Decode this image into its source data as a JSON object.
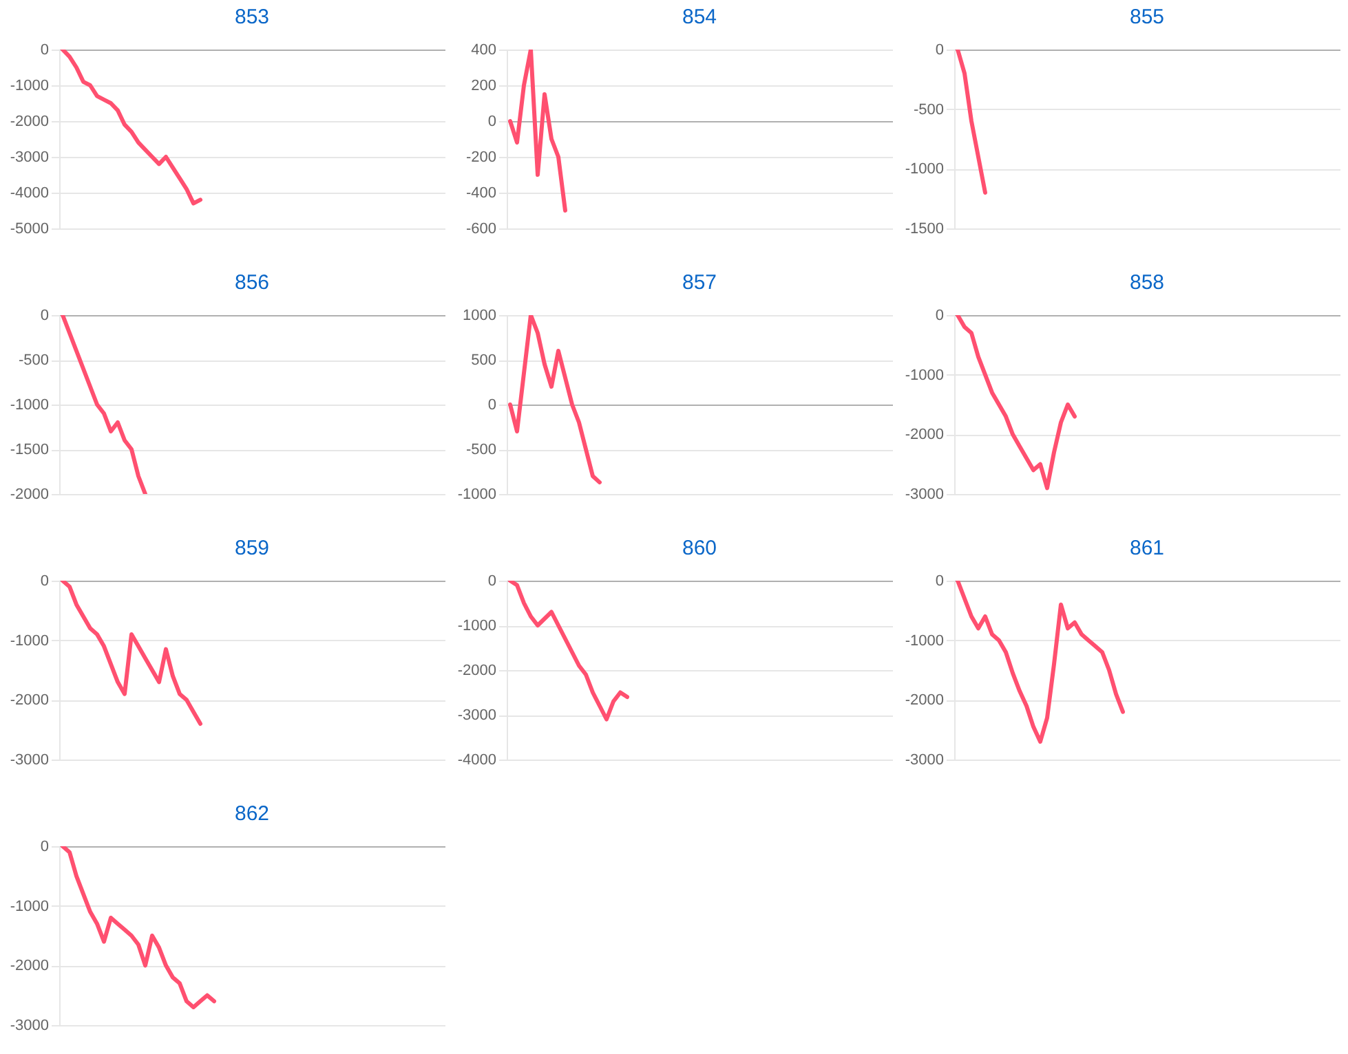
{
  "chart_data": [
    {
      "type": "line",
      "title": "853",
      "grid": "y",
      "ylim": [
        -5000,
        0
      ],
      "yticks": [
        -5000,
        -4000,
        -3000,
        -2000,
        -1000,
        0
      ],
      "categories": [
        null,
        null,
        null,
        null,
        null,
        null,
        null,
        null,
        null,
        null,
        null,
        null,
        null,
        null,
        null,
        null,
        null,
        null,
        null,
        null,
        null,
        null,
        null,
        null,
        null,
        null,
        null,
        null,
        null,
        null,
        null,
        null,
        null,
        null,
        null,
        null,
        null,
        null,
        null,
        null,
        null,
        null,
        null,
        null,
        null,
        null,
        null,
        null,
        null,
        null,
        null,
        null,
        null,
        null,
        null,
        null
      ],
      "series": [
        {
          "color": "#ff5070",
          "values": [
            0,
            -200,
            -500,
            -900,
            -1000,
            -1300,
            -1400,
            -1500,
            -1700,
            -2100,
            -2300,
            -2600,
            -2800,
            -3000,
            -3200,
            -3000,
            -3300,
            -3600,
            -3900,
            -4300,
            -4200,
            null,
            null,
            null,
            null,
            null,
            null,
            null,
            null,
            null,
            null,
            null,
            null,
            null,
            null,
            null,
            null,
            null,
            null,
            null,
            null,
            null,
            null,
            null,
            null,
            null,
            null,
            null,
            null,
            null,
            null,
            null,
            null,
            null,
            null,
            null
          ]
        }
      ]
    },
    {
      "type": "line",
      "title": "854",
      "grid": "y",
      "ylim": [
        -600,
        400
      ],
      "yticks": [
        -600,
        -400,
        -200,
        0,
        200,
        400
      ],
      "categories": [
        null,
        null,
        null,
        null,
        null,
        null,
        null,
        null,
        null,
        null,
        null,
        null,
        null,
        null,
        null,
        null,
        null,
        null,
        null,
        null,
        null,
        null,
        null,
        null,
        null,
        null,
        null,
        null,
        null,
        null,
        null,
        null,
        null,
        null,
        null,
        null,
        null,
        null,
        null,
        null,
        null,
        null,
        null,
        null,
        null,
        null,
        null,
        null,
        null,
        null,
        null,
        null,
        null,
        null,
        null,
        null
      ],
      "series": [
        {
          "color": "#ff5070",
          "values": [
            0,
            -120,
            200,
            400,
            -300,
            150,
            -100,
            -200,
            -500,
            null,
            null,
            null,
            null,
            null,
            null,
            null,
            null,
            null,
            null,
            null,
            null,
            null,
            null,
            null,
            null,
            null,
            null,
            null,
            null,
            null,
            null,
            null,
            null,
            null,
            null,
            null,
            null,
            null,
            null,
            null,
            null,
            null,
            null,
            null,
            null,
            null,
            null,
            null,
            null,
            null,
            null,
            null,
            null,
            null,
            null,
            null
          ]
        }
      ]
    },
    {
      "type": "line",
      "title": "855",
      "grid": "y",
      "ylim": [
        -1500,
        0
      ],
      "yticks": [
        -1500,
        -1000,
        -500,
        0
      ],
      "categories": [
        null,
        null,
        null,
        null,
        null,
        null,
        null,
        null,
        null,
        null,
        null,
        null,
        null,
        null,
        null,
        null,
        null,
        null,
        null,
        null,
        null,
        null,
        null,
        null,
        null,
        null,
        null,
        null,
        null,
        null,
        null,
        null,
        null,
        null,
        null,
        null,
        null,
        null,
        null,
        null,
        null,
        null,
        null,
        null,
        null,
        null,
        null,
        null,
        null,
        null,
        null,
        null,
        null,
        null,
        null,
        null
      ],
      "series": [
        {
          "color": "#ff5070",
          "values": [
            0,
            -200,
            -600,
            -900,
            -1200,
            null,
            null,
            null,
            null,
            null,
            null,
            null,
            null,
            null,
            null,
            null,
            null,
            null,
            null,
            null,
            null,
            null,
            null,
            null,
            null,
            null,
            null,
            null,
            null,
            null,
            null,
            null,
            null,
            null,
            null,
            null,
            null,
            null,
            null,
            null,
            null,
            null,
            null,
            null,
            null,
            null,
            null,
            null,
            null,
            null,
            null,
            null,
            null,
            null,
            null,
            null
          ]
        }
      ]
    },
    {
      "type": "line",
      "title": "856",
      "grid": "y",
      "ylim": [
        -2000,
        0
      ],
      "yticks": [
        -2000,
        -1500,
        -1000,
        -500,
        0
      ],
      "categories": [
        null,
        null,
        null,
        null,
        null,
        null,
        null,
        null,
        null,
        null,
        null,
        null,
        null,
        null,
        null,
        null,
        null,
        null,
        null,
        null,
        null,
        null,
        null,
        null,
        null,
        null,
        null,
        null,
        null,
        null,
        null,
        null,
        null,
        null,
        null,
        null,
        null,
        null,
        null,
        null,
        null,
        null,
        null,
        null,
        null,
        null,
        null,
        null,
        null,
        null,
        null,
        null,
        null,
        null,
        null,
        null
      ],
      "series": [
        {
          "color": "#ff5070",
          "values": [
            0,
            -200,
            -400,
            -600,
            -800,
            -1000,
            -1100,
            -1300,
            -1200,
            -1400,
            -1500,
            -1800,
            -2000,
            null,
            null,
            null,
            null,
            null,
            null,
            null,
            null,
            null,
            null,
            null,
            null,
            null,
            null,
            null,
            null,
            null,
            null,
            null,
            null,
            null,
            null,
            null,
            null,
            null,
            null,
            null,
            null,
            null,
            null,
            null,
            null,
            null,
            null,
            null,
            null,
            null,
            null,
            null,
            null,
            null,
            null,
            null
          ]
        }
      ]
    },
    {
      "type": "line",
      "title": "857",
      "grid": "y",
      "ylim": [
        -1000,
        1000
      ],
      "yticks": [
        -1000,
        -500,
        0,
        500,
        1000
      ],
      "categories": [
        null,
        null,
        null,
        null,
        null,
        null,
        null,
        null,
        null,
        null,
        null,
        null,
        null,
        null,
        null,
        null,
        null,
        null,
        null,
        null,
        null,
        null,
        null,
        null,
        null,
        null,
        null,
        null,
        null,
        null,
        null,
        null,
        null,
        null,
        null,
        null,
        null,
        null,
        null,
        null,
        null,
        null,
        null,
        null,
        null,
        null,
        null,
        null,
        null,
        null,
        null,
        null,
        null,
        null,
        null,
        null
      ],
      "series": [
        {
          "color": "#ff5070",
          "values": [
            0,
            -300,
            350,
            1000,
            800,
            450,
            200,
            600,
            300,
            0,
            -200,
            -500,
            -800,
            -870,
            null,
            null,
            null,
            null,
            null,
            null,
            null,
            null,
            null,
            null,
            null,
            null,
            null,
            null,
            null,
            null,
            null,
            null,
            null,
            null,
            null,
            null,
            null,
            null,
            null,
            null,
            null,
            null,
            null,
            null,
            null,
            null,
            null,
            null,
            null,
            null,
            null,
            null,
            null,
            null,
            null,
            null
          ]
        }
      ]
    },
    {
      "type": "line",
      "title": "858",
      "grid": "y",
      "ylim": [
        -3000,
        0
      ],
      "yticks": [
        -3000,
        -2000,
        -1000,
        0
      ],
      "categories": [
        null,
        null,
        null,
        null,
        null,
        null,
        null,
        null,
        null,
        null,
        null,
        null,
        null,
        null,
        null,
        null,
        null,
        null,
        null,
        null,
        null,
        null,
        null,
        null,
        null,
        null,
        null,
        null,
        null,
        null,
        null,
        null,
        null,
        null,
        null,
        null,
        null,
        null,
        null,
        null,
        null,
        null,
        null,
        null,
        null,
        null,
        null,
        null,
        null,
        null,
        null,
        null,
        null,
        null,
        null,
        null
      ],
      "series": [
        {
          "color": "#ff5070",
          "values": [
            0,
            -200,
            -300,
            -700,
            -1000,
            -1300,
            -1500,
            -1700,
            -2000,
            -2200,
            -2400,
            -2600,
            -2500,
            -2900,
            -2300,
            -1800,
            -1500,
            -1700,
            null,
            null,
            null,
            null,
            null,
            null,
            null,
            null,
            null,
            null,
            null,
            null,
            null,
            null,
            null,
            null,
            null,
            null,
            null,
            null,
            null,
            null,
            null,
            null,
            null,
            null,
            null,
            null,
            null,
            null,
            null,
            null,
            null,
            null,
            null,
            null,
            null,
            null
          ]
        }
      ]
    },
    {
      "type": "line",
      "title": "859",
      "grid": "y",
      "ylim": [
        -3000,
        0
      ],
      "yticks": [
        -3000,
        -2000,
        -1000,
        0
      ],
      "categories": [
        null,
        null,
        null,
        null,
        null,
        null,
        null,
        null,
        null,
        null,
        null,
        null,
        null,
        null,
        null,
        null,
        null,
        null,
        null,
        null,
        null,
        null,
        null,
        null,
        null,
        null,
        null,
        null,
        null,
        null,
        null,
        null,
        null,
        null,
        null,
        null,
        null,
        null,
        null,
        null,
        null,
        null,
        null,
        null,
        null,
        null,
        null,
        null,
        null,
        null,
        null,
        null,
        null,
        null,
        null,
        null
      ],
      "series": [
        {
          "color": "#ff5070",
          "values": [
            0,
            -100,
            -400,
            -600,
            -800,
            -900,
            -1100,
            -1400,
            -1700,
            -1900,
            -900,
            -1100,
            -1300,
            -1500,
            -1700,
            -1150,
            -1600,
            -1900,
            -2000,
            -2200,
            -2400,
            null,
            null,
            null,
            null,
            null,
            null,
            null,
            null,
            null,
            null,
            null,
            null,
            null,
            null,
            null,
            null,
            null,
            null,
            null,
            null,
            null,
            null,
            null,
            null,
            null,
            null,
            null,
            null,
            null,
            null,
            null,
            null,
            null,
            null,
            null
          ]
        }
      ]
    },
    {
      "type": "line",
      "title": "860",
      "grid": "y",
      "ylim": [
        -4000,
        0
      ],
      "yticks": [
        -4000,
        -3000,
        -2000,
        -1000,
        0
      ],
      "categories": [
        null,
        null,
        null,
        null,
        null,
        null,
        null,
        null,
        null,
        null,
        null,
        null,
        null,
        null,
        null,
        null,
        null,
        null,
        null,
        null,
        null,
        null,
        null,
        null,
        null,
        null,
        null,
        null,
        null,
        null,
        null,
        null,
        null,
        null,
        null,
        null,
        null,
        null,
        null,
        null,
        null,
        null,
        null,
        null,
        null,
        null,
        null,
        null,
        null,
        null,
        null,
        null,
        null,
        null,
        null,
        null
      ],
      "series": [
        {
          "color": "#ff5070",
          "values": [
            0,
            -100,
            -500,
            -800,
            -1000,
            -850,
            -700,
            -1000,
            -1300,
            -1600,
            -1900,
            -2100,
            -2500,
            -2800,
            -3100,
            -2700,
            -2500,
            -2600,
            null,
            null,
            null,
            null,
            null,
            null,
            null,
            null,
            null,
            null,
            null,
            null,
            null,
            null,
            null,
            null,
            null,
            null,
            null,
            null,
            null,
            null,
            null,
            null,
            null,
            null,
            null,
            null,
            null,
            null,
            null,
            null,
            null,
            null,
            null,
            null,
            null,
            null
          ]
        }
      ]
    },
    {
      "type": "line",
      "title": "861",
      "grid": "y",
      "ylim": [
        -3000,
        0
      ],
      "yticks": [
        -3000,
        -2000,
        -1000,
        0
      ],
      "categories": [
        null,
        null,
        null,
        null,
        null,
        null,
        null,
        null,
        null,
        null,
        null,
        null,
        null,
        null,
        null,
        null,
        null,
        null,
        null,
        null,
        null,
        null,
        null,
        null,
        null,
        null,
        null,
        null,
        null,
        null,
        null,
        null,
        null,
        null,
        null,
        null,
        null,
        null,
        null,
        null,
        null,
        null,
        null,
        null,
        null,
        null,
        null,
        null,
        null,
        null,
        null,
        null,
        null,
        null,
        null,
        null
      ],
      "series": [
        {
          "color": "#ff5070",
          "values": [
            0,
            -300,
            -600,
            -800,
            -600,
            -900,
            -1000,
            -1200,
            -1550,
            -1850,
            -2100,
            -2450,
            -2700,
            -2300,
            -1400,
            -400,
            -800,
            -700,
            -900,
            -1000,
            -1100,
            -1200,
            -1500,
            -1900,
            -2200,
            null,
            null,
            null,
            null,
            null,
            null,
            null,
            null,
            null,
            null,
            null,
            null,
            null,
            null,
            null,
            null,
            null,
            null,
            null,
            null,
            null,
            null,
            null,
            null,
            null,
            null,
            null,
            null,
            null,
            null,
            null
          ]
        }
      ]
    },
    {
      "type": "line",
      "title": "862",
      "grid": "y",
      "ylim": [
        -3000,
        0
      ],
      "yticks": [
        -3000,
        -2000,
        -1000,
        0
      ],
      "categories": [
        null,
        null,
        null,
        null,
        null,
        null,
        null,
        null,
        null,
        null,
        null,
        null,
        null,
        null,
        null,
        null,
        null,
        null,
        null,
        null,
        null,
        null,
        null,
        null,
        null,
        null,
        null,
        null,
        null,
        null,
        null,
        null,
        null,
        null,
        null,
        null,
        null,
        null,
        null,
        null,
        null,
        null,
        null,
        null,
        null,
        null,
        null,
        null,
        null,
        null,
        null,
        null,
        null,
        null,
        null,
        null
      ],
      "series": [
        {
          "color": "#ff5070",
          "values": [
            0,
            -100,
            -500,
            -800,
            -1100,
            -1300,
            -1600,
            -1200,
            -1300,
            -1400,
            -1500,
            -1650,
            -2000,
            -1500,
            -1700,
            -2000,
            -2200,
            -2300,
            -2600,
            -2700,
            -2600,
            -2500,
            -2600,
            null,
            null,
            null,
            null,
            null,
            null,
            null,
            null,
            null,
            null,
            null,
            null,
            null,
            null,
            null,
            null,
            null,
            null,
            null,
            null,
            null,
            null,
            null,
            null,
            null,
            null,
            null,
            null,
            null,
            null,
            null,
            null,
            null
          ]
        }
      ]
    }
  ]
}
